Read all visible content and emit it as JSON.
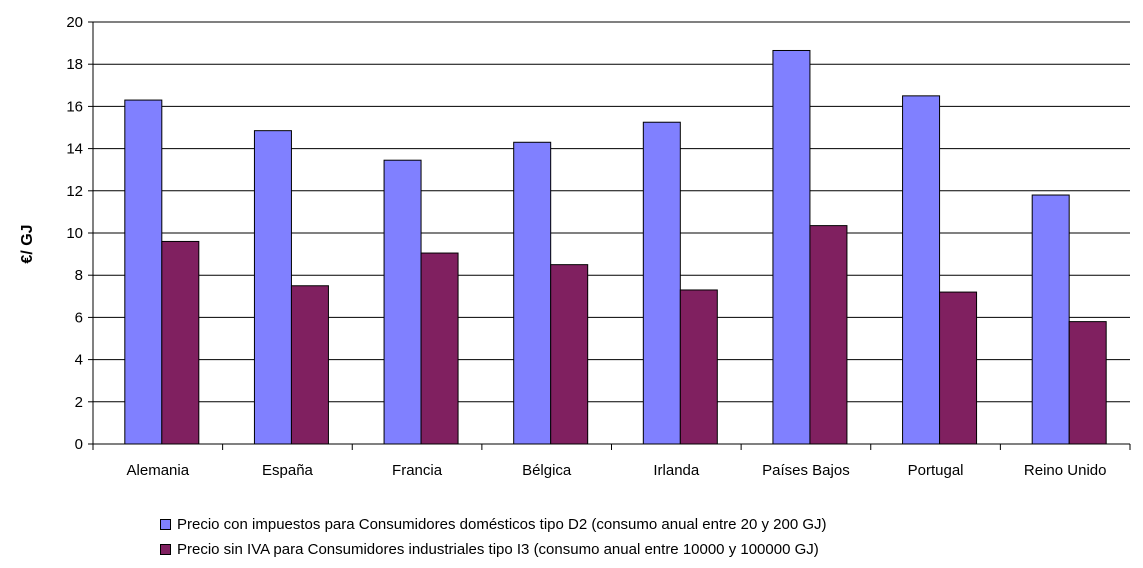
{
  "chart_data": {
    "type": "bar",
    "title": "",
    "xlabel": "",
    "ylabel": "€/ GJ",
    "ylim": [
      0,
      20
    ],
    "yticks": [
      0,
      2,
      4,
      6,
      8,
      10,
      12,
      14,
      16,
      18,
      20
    ],
    "grid": true,
    "legend_position": "bottom",
    "categories": [
      "Alemania",
      "España",
      "Francia",
      "Bélgica",
      "Irlanda",
      "Países Bajos",
      "Portugal",
      "Reino Unido"
    ],
    "series": [
      {
        "name": "Precio con impuestos para Consumidores domésticos tipo D2 (consumo anual entre 20 y 200 GJ)",
        "color": "#8080ff",
        "values": [
          16.3,
          14.85,
          13.45,
          14.3,
          15.25,
          18.65,
          16.5,
          11.8
        ]
      },
      {
        "name": "Precio sin IVA para Consumidores industriales tipo I3 (consumo anual entre 10000 y 100000 GJ)",
        "color": "#802060",
        "values": [
          9.6,
          7.5,
          9.05,
          8.5,
          7.3,
          10.35,
          7.2,
          5.8
        ]
      }
    ]
  }
}
